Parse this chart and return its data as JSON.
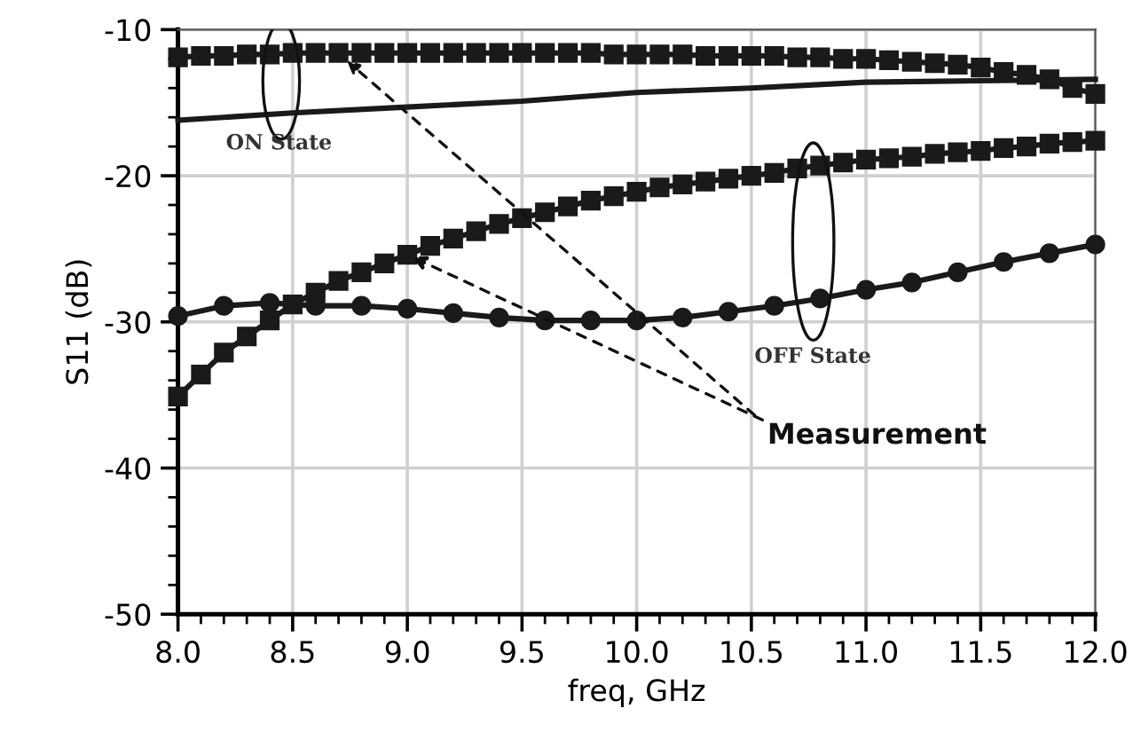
{
  "chart_data": {
    "type": "line",
    "xlabel": "freq, GHz",
    "ylabel": "S11 (dB)",
    "xlim": [
      8.0,
      12.0
    ],
    "ylim": [
      -50,
      -10
    ],
    "xticks": [
      {
        "value": 8.0,
        "label": "8.0"
      },
      {
        "value": 8.5,
        "label": "8.5"
      },
      {
        "value": 9.0,
        "label": "9.0"
      },
      {
        "value": 9.5,
        "label": "9.5"
      },
      {
        "value": 10.0,
        "label": "10.0"
      },
      {
        "value": 10.5,
        "label": "10.5"
      },
      {
        "value": 11.0,
        "label": "11.0"
      },
      {
        "value": 11.5,
        "label": "11.5"
      },
      {
        "value": 12.0,
        "label": "12.0"
      }
    ],
    "yticks": [
      -50,
      -40,
      -30,
      -20,
      -10
    ],
    "grid": true,
    "series": [
      {
        "color": "#1a1a1a",
        "marker": "square",
        "x": [
          8.0,
          8.1,
          8.2,
          8.3,
          8.4,
          8.5,
          8.6,
          8.7,
          8.8,
          8.9,
          9.0,
          9.1,
          9.2,
          9.3,
          9.4,
          9.5,
          9.6,
          9.7,
          9.8,
          9.9,
          10.0,
          10.1,
          10.2,
          10.3,
          10.4,
          10.5,
          10.6,
          10.7,
          10.8,
          10.9,
          11.0,
          11.1,
          11.2,
          11.3,
          11.4,
          11.5,
          11.6,
          11.7,
          11.8,
          11.9,
          12.0
        ],
        "values": [
          -11.9,
          -11.8,
          -11.8,
          -11.7,
          -11.7,
          -11.6,
          -11.6,
          -11.6,
          -11.6,
          -11.6,
          -11.6,
          -11.6,
          -11.6,
          -11.6,
          -11.6,
          -11.6,
          -11.6,
          -11.6,
          -11.6,
          -11.7,
          -11.7,
          -11.7,
          -11.7,
          -11.8,
          -11.8,
          -11.8,
          -11.8,
          -11.9,
          -11.9,
          -12.0,
          -12.0,
          -12.1,
          -12.2,
          -12.3,
          -12.4,
          -12.6,
          -12.9,
          -13.1,
          -13.4,
          -14.0,
          -14.4
        ]
      },
      {
        "color": "#1a1a1a",
        "marker": "none",
        "x": [
          8.0,
          8.5,
          9.0,
          9.5,
          10.0,
          10.5,
          11.0,
          11.5,
          12.0
        ],
        "values": [
          -16.2,
          -15.7,
          -15.3,
          -14.9,
          -14.3,
          -14.0,
          -13.6,
          -13.5,
          -13.4
        ]
      },
      {
        "color": "#1a1a1a",
        "marker": "square",
        "x": [
          8.0,
          8.1,
          8.2,
          8.3,
          8.4,
          8.5,
          8.6,
          8.7,
          8.8,
          8.9,
          9.0,
          9.1,
          9.2,
          9.3,
          9.4,
          9.5,
          9.6,
          9.7,
          9.8,
          9.9,
          10.0,
          10.1,
          10.2,
          10.3,
          10.4,
          10.5,
          10.6,
          10.7,
          10.8,
          10.9,
          11.0,
          11.1,
          11.2,
          11.3,
          11.4,
          11.5,
          11.6,
          11.7,
          11.8,
          11.9,
          12.0
        ],
        "values": [
          -35.1,
          -33.6,
          -32.1,
          -31.0,
          -29.9,
          -28.8,
          -28.0,
          -27.2,
          -26.6,
          -26.0,
          -25.4,
          -24.8,
          -24.3,
          -23.8,
          -23.3,
          -22.9,
          -22.5,
          -22.1,
          -21.7,
          -21.4,
          -21.1,
          -20.8,
          -20.6,
          -20.4,
          -20.2,
          -20.0,
          -19.8,
          -19.5,
          -19.3,
          -19.1,
          -18.9,
          -18.8,
          -18.7,
          -18.5,
          -18.4,
          -18.3,
          -18.1,
          -18.0,
          -17.8,
          -17.7,
          -17.6
        ]
      },
      {
        "color": "#1a1a1a",
        "marker": "circle",
        "x": [
          8.0,
          8.2,
          8.4,
          8.6,
          8.8,
          9.0,
          9.2,
          9.4,
          9.6,
          9.8,
          10.0,
          10.2,
          10.4,
          10.6,
          10.8,
          11.0,
          11.2,
          11.4,
          11.6,
          11.8,
          12.0
        ],
        "values": [
          -29.6,
          -28.9,
          -28.7,
          -28.9,
          -28.9,
          -29.1,
          -29.4,
          -29.7,
          -29.9,
          -29.9,
          -29.9,
          -29.7,
          -29.3,
          -28.9,
          -28.4,
          -27.8,
          -27.3,
          -26.6,
          -25.9,
          -25.3,
          -24.7
        ]
      }
    ],
    "annotations": [
      "ON State",
      "OFF State",
      {
        "text": "Measurement",
        "x": 9.0,
        "y": -25.4
      }
    ]
  }
}
